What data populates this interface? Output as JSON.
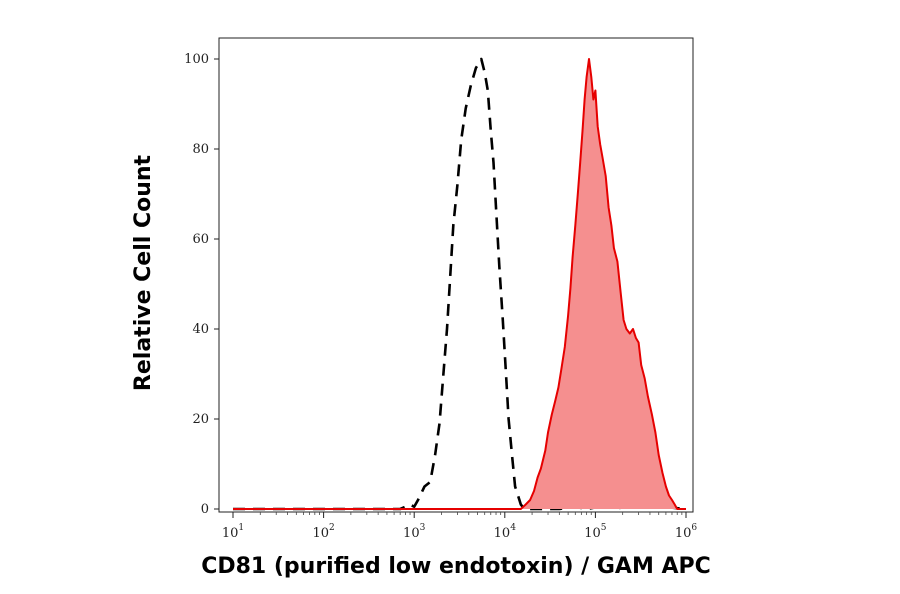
{
  "chart_data": {
    "type": "area",
    "xlabel": "CD81 (purified low endotoxin) / GAM APC",
    "ylabel": "Relative Cell Count",
    "x_scale": "log",
    "xlim": [
      10,
      1000000
    ],
    "ylim": [
      0,
      100
    ],
    "x_ticks": [
      {
        "base": "10",
        "exp": "1",
        "value": 10
      },
      {
        "base": "10",
        "exp": "2",
        "value": 100
      },
      {
        "base": "10",
        "exp": "3",
        "value": 1000
      },
      {
        "base": "10",
        "exp": "4",
        "value": 10000
      },
      {
        "base": "10",
        "exp": "5",
        "value": 100000
      },
      {
        "base": "10",
        "exp": "6",
        "value": 1000000
      }
    ],
    "y_ticks": [
      "0",
      "20",
      "40",
      "60",
      "80",
      "100"
    ],
    "series": [
      {
        "style": "dashed",
        "color": "#000000",
        "fill": "none",
        "points": [
          [
            10,
            0
          ],
          [
            700,
            0
          ],
          [
            800,
            0.5
          ],
          [
            900,
            1
          ],
          [
            1000,
            0.5
          ],
          [
            1100,
            2
          ],
          [
            1300,
            5
          ],
          [
            1500,
            6
          ],
          [
            1700,
            12
          ],
          [
            1900,
            19
          ],
          [
            2100,
            30
          ],
          [
            2300,
            40
          ],
          [
            2500,
            52
          ],
          [
            2700,
            63
          ],
          [
            3000,
            72
          ],
          [
            3300,
            82
          ],
          [
            3700,
            89
          ],
          [
            4200,
            94
          ],
          [
            4800,
            98
          ],
          [
            5500,
            100
          ],
          [
            6000,
            97
          ],
          [
            6500,
            93
          ],
          [
            7000,
            84
          ],
          [
            7500,
            77
          ],
          [
            8000,
            67
          ],
          [
            8700,
            54
          ],
          [
            9500,
            42
          ],
          [
            10300,
            30
          ],
          [
            11000,
            20
          ],
          [
            12000,
            12
          ],
          [
            13000,
            5
          ],
          [
            14000,
            3
          ],
          [
            15000,
            1
          ],
          [
            16500,
            0
          ],
          [
            40000,
            0
          ],
          [
            60000,
            0.5
          ],
          [
            80000,
            0
          ],
          [
            150000,
            1
          ],
          [
            200000,
            0
          ],
          [
            300000,
            1
          ],
          [
            1000000,
            0
          ]
        ]
      },
      {
        "style": "solid",
        "color": "#e60000",
        "fill": "#f58f8f",
        "points": [
          [
            10,
            0
          ],
          [
            15000,
            0
          ],
          [
            17000,
            1
          ],
          [
            19000,
            2
          ],
          [
            21000,
            4
          ],
          [
            23000,
            7
          ],
          [
            25000,
            9
          ],
          [
            28000,
            13
          ],
          [
            30000,
            17
          ],
          [
            33000,
            21
          ],
          [
            36000,
            24
          ],
          [
            39000,
            27
          ],
          [
            42000,
            31
          ],
          [
            46000,
            36
          ],
          [
            50000,
            43
          ],
          [
            53000,
            49
          ],
          [
            56000,
            56
          ],
          [
            60000,
            63
          ],
          [
            64000,
            70
          ],
          [
            68000,
            77
          ],
          [
            72000,
            84
          ],
          [
            76000,
            91
          ],
          [
            80000,
            96
          ],
          [
            85000,
            100
          ],
          [
            90000,
            96
          ],
          [
            95000,
            91
          ],
          [
            100000,
            93
          ],
          [
            106000,
            85
          ],
          [
            113000,
            81
          ],
          [
            120000,
            78
          ],
          [
            130000,
            74
          ],
          [
            140000,
            67
          ],
          [
            150000,
            63
          ],
          [
            160000,
            58
          ],
          [
            175000,
            55
          ],
          [
            190000,
            48
          ],
          [
            205000,
            42
          ],
          [
            220000,
            40
          ],
          [
            240000,
            39
          ],
          [
            260000,
            40
          ],
          [
            280000,
            38
          ],
          [
            300000,
            37
          ],
          [
            320000,
            32
          ],
          [
            350000,
            29
          ],
          [
            380000,
            25
          ],
          [
            420000,
            21
          ],
          [
            460000,
            17
          ],
          [
            500000,
            12
          ],
          [
            550000,
            8
          ],
          [
            600000,
            5
          ],
          [
            650000,
            3
          ],
          [
            700000,
            2
          ],
          [
            750000,
            1
          ],
          [
            800000,
            0
          ],
          [
            1000000,
            0
          ]
        ]
      }
    ]
  }
}
